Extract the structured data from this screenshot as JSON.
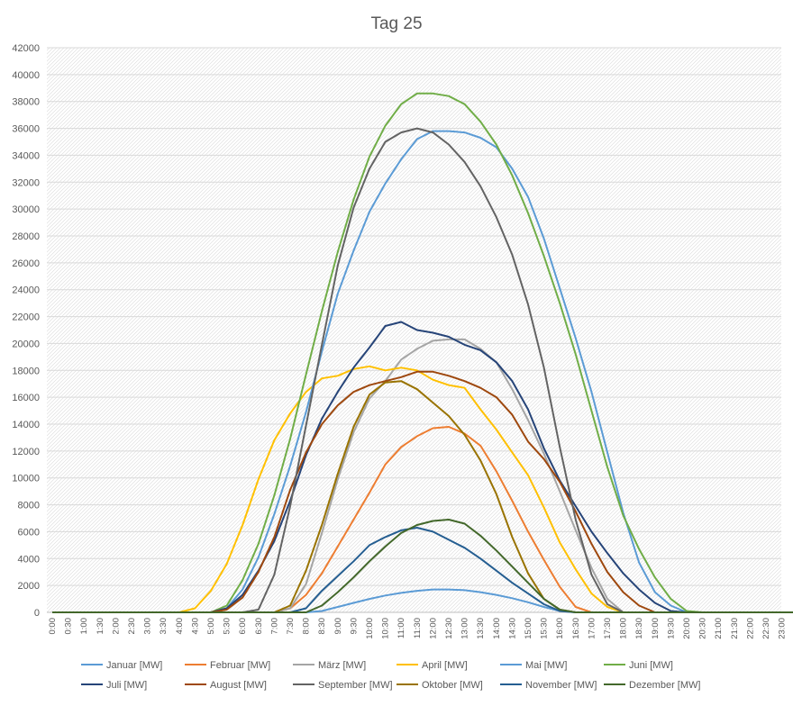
{
  "chart_data": {
    "type": "line",
    "title": "Tag 25",
    "xlabel": "",
    "ylabel": "",
    "ylim": [
      0,
      42000
    ],
    "yticks": [
      0,
      2000,
      4000,
      6000,
      8000,
      10000,
      12000,
      14000,
      16000,
      18000,
      20000,
      22000,
      24000,
      26000,
      28000,
      30000,
      32000,
      34000,
      36000,
      38000,
      40000,
      42000
    ],
    "x": [
      "0:00",
      "0:30",
      "1:00",
      "1:30",
      "2:00",
      "2:30",
      "3:00",
      "3:30",
      "4:00",
      "4:30",
      "5:00",
      "5:30",
      "6:00",
      "6:30",
      "7:00",
      "7:30",
      "8:00",
      "8:30",
      "9:00",
      "9:30",
      "10:00",
      "10:30",
      "11:00",
      "11:30",
      "12:00",
      "12:30",
      "13:00",
      "13:30",
      "14:00",
      "14:30",
      "15:00",
      "15:30",
      "16:00",
      "16:30",
      "17:00",
      "17:30",
      "18:00",
      "18:30",
      "19:00",
      "19:30",
      "20:00",
      "20:30",
      "21:00",
      "21:30",
      "22:00",
      "22:30",
      "23:00",
      "23:30"
    ],
    "grid": true,
    "legend_position": "bottom",
    "series": [
      {
        "name": "Januar [MW]",
        "color": "#5B9BD5",
        "values": [
          0,
          0,
          0,
          0,
          0,
          0,
          0,
          0,
          0,
          0,
          0,
          0,
          0,
          0,
          0,
          0,
          0,
          100,
          400,
          700,
          1000,
          1250,
          1450,
          1600,
          1700,
          1700,
          1650,
          1500,
          1300,
          1050,
          750,
          400,
          100,
          0,
          0,
          0,
          0,
          0,
          0,
          0,
          0,
          0,
          0,
          0,
          0,
          0,
          0,
          0
        ]
      },
      {
        "name": "Februar [MW]",
        "color": "#ED7D31",
        "values": [
          0,
          0,
          0,
          0,
          0,
          0,
          0,
          0,
          0,
          0,
          0,
          0,
          0,
          0,
          0,
          300,
          1300,
          2900,
          4900,
          6900,
          8900,
          11000,
          12300,
          13100,
          13700,
          13800,
          13300,
          12400,
          10500,
          8300,
          6000,
          3900,
          1900,
          400,
          0,
          0,
          0,
          0,
          0,
          0,
          0,
          0,
          0,
          0,
          0,
          0,
          0,
          0
        ]
      },
      {
        "name": "März [MW]",
        "color": "#A5A5A5",
        "values": [
          0,
          0,
          0,
          0,
          0,
          0,
          0,
          0,
          0,
          0,
          0,
          0,
          0,
          0,
          0,
          300,
          2100,
          5900,
          9900,
          13400,
          15900,
          17200,
          18800,
          19600,
          20200,
          20300,
          20300,
          19600,
          18600,
          16600,
          14300,
          11800,
          9000,
          6100,
          3300,
          1000,
          0,
          0,
          0,
          0,
          0,
          0,
          0,
          0,
          0,
          0,
          0,
          0
        ]
      },
      {
        "name": "April [MW]",
        "color": "#FFC000",
        "values": [
          0,
          0,
          0,
          0,
          0,
          0,
          0,
          0,
          0,
          300,
          1600,
          3600,
          6500,
          9900,
          12800,
          14800,
          16400,
          17400,
          17600,
          18100,
          18300,
          18000,
          18200,
          18000,
          17300,
          16900,
          16700,
          15100,
          13600,
          11900,
          10200,
          7800,
          5200,
          3200,
          1400,
          400,
          0,
          0,
          0,
          0,
          0,
          0,
          0,
          0,
          0,
          0,
          0,
          0
        ]
      },
      {
        "name": "Mai [MW]",
        "color": "#5B9BD5",
        "values": [
          0,
          0,
          0,
          0,
          0,
          0,
          0,
          0,
          0,
          0,
          0,
          300,
          1700,
          4100,
          7300,
          10900,
          14900,
          19400,
          23700,
          26900,
          29800,
          31900,
          33700,
          35200,
          35800,
          35800,
          35700,
          35300,
          34600,
          33000,
          30900,
          27800,
          24100,
          20400,
          16400,
          11900,
          7400,
          3700,
          1500,
          500,
          0,
          0,
          0,
          0,
          0,
          0,
          0,
          0
        ]
      },
      {
        "name": "Juni [MW]",
        "color": "#70AD47",
        "values": [
          0,
          0,
          0,
          0,
          0,
          0,
          0,
          0,
          0,
          0,
          0,
          500,
          2400,
          5100,
          8700,
          12900,
          17700,
          22400,
          26800,
          30700,
          33900,
          36200,
          37800,
          38600,
          38600,
          38400,
          37800,
          36500,
          34800,
          32500,
          29700,
          26500,
          23000,
          19200,
          15000,
          10800,
          7200,
          4700,
          2600,
          1000,
          100,
          0,
          0,
          0,
          0,
          0,
          0,
          0
        ]
      },
      {
        "name": "Juli [MW]",
        "color": "#264478",
        "values": [
          0,
          0,
          0,
          0,
          0,
          0,
          0,
          0,
          0,
          0,
          0,
          300,
          1300,
          3100,
          5300,
          8300,
          11700,
          14400,
          16400,
          18200,
          19700,
          21300,
          21600,
          21000,
          20800,
          20500,
          19900,
          19500,
          18600,
          17200,
          15100,
          12200,
          9800,
          7900,
          6000,
          4400,
          2900,
          1700,
          700,
          100,
          0,
          0,
          0,
          0,
          0,
          0,
          0,
          0
        ]
      },
      {
        "name": "August [MW]",
        "color": "#9E480E",
        "values": [
          0,
          0,
          0,
          0,
          0,
          0,
          0,
          0,
          0,
          0,
          0,
          200,
          1100,
          3000,
          5600,
          9100,
          11900,
          14000,
          15400,
          16400,
          16900,
          17200,
          17500,
          17900,
          17900,
          17600,
          17200,
          16700,
          16000,
          14700,
          12700,
          11400,
          9700,
          7500,
          5100,
          3000,
          1500,
          500,
          0,
          0,
          0,
          0,
          0,
          0,
          0,
          0,
          0,
          0
        ]
      },
      {
        "name": "September [MW]",
        "color": "#636363",
        "values": [
          0,
          0,
          0,
          0,
          0,
          0,
          0,
          0,
          0,
          0,
          0,
          0,
          0,
          200,
          2800,
          7900,
          13900,
          19900,
          25800,
          30100,
          33000,
          35000,
          35700,
          36000,
          35700,
          34800,
          33500,
          31700,
          29400,
          26600,
          22900,
          18200,
          12300,
          6900,
          2800,
          600,
          0,
          0,
          0,
          0,
          0,
          0,
          0,
          0,
          0,
          0,
          0,
          0
        ]
      },
      {
        "name": "Oktober [MW]",
        "color": "#997300",
        "values": [
          0,
          0,
          0,
          0,
          0,
          0,
          0,
          0,
          0,
          0,
          0,
          0,
          0,
          0,
          0,
          500,
          3100,
          6500,
          10300,
          13800,
          16200,
          17100,
          17200,
          16600,
          15600,
          14600,
          13200,
          11300,
          8800,
          5600,
          2900,
          1000,
          200,
          0,
          0,
          0,
          0,
          0,
          0,
          0,
          0,
          0,
          0,
          0,
          0,
          0,
          0,
          0
        ]
      },
      {
        "name": "November [MW]",
        "color": "#255E91",
        "values": [
          0,
          0,
          0,
          0,
          0,
          0,
          0,
          0,
          0,
          0,
          0,
          0,
          0,
          0,
          0,
          0,
          300,
          1600,
          2700,
          3800,
          5000,
          5600,
          6100,
          6300,
          6000,
          5400,
          4800,
          4000,
          3100,
          2200,
          1400,
          600,
          100,
          0,
          0,
          0,
          0,
          0,
          0,
          0,
          0,
          0,
          0,
          0,
          0,
          0,
          0,
          0
        ]
      },
      {
        "name": "Dezember [MW]",
        "color": "#43682B",
        "values": [
          0,
          0,
          0,
          0,
          0,
          0,
          0,
          0,
          0,
          0,
          0,
          0,
          0,
          0,
          0,
          0,
          0,
          500,
          1500,
          2600,
          3800,
          4900,
          5900,
          6500,
          6800,
          6900,
          6600,
          5700,
          4600,
          3400,
          2200,
          1000,
          200,
          0,
          0,
          0,
          0,
          0,
          0,
          0,
          0,
          0,
          0,
          0,
          0,
          0,
          0,
          0
        ]
      }
    ]
  }
}
